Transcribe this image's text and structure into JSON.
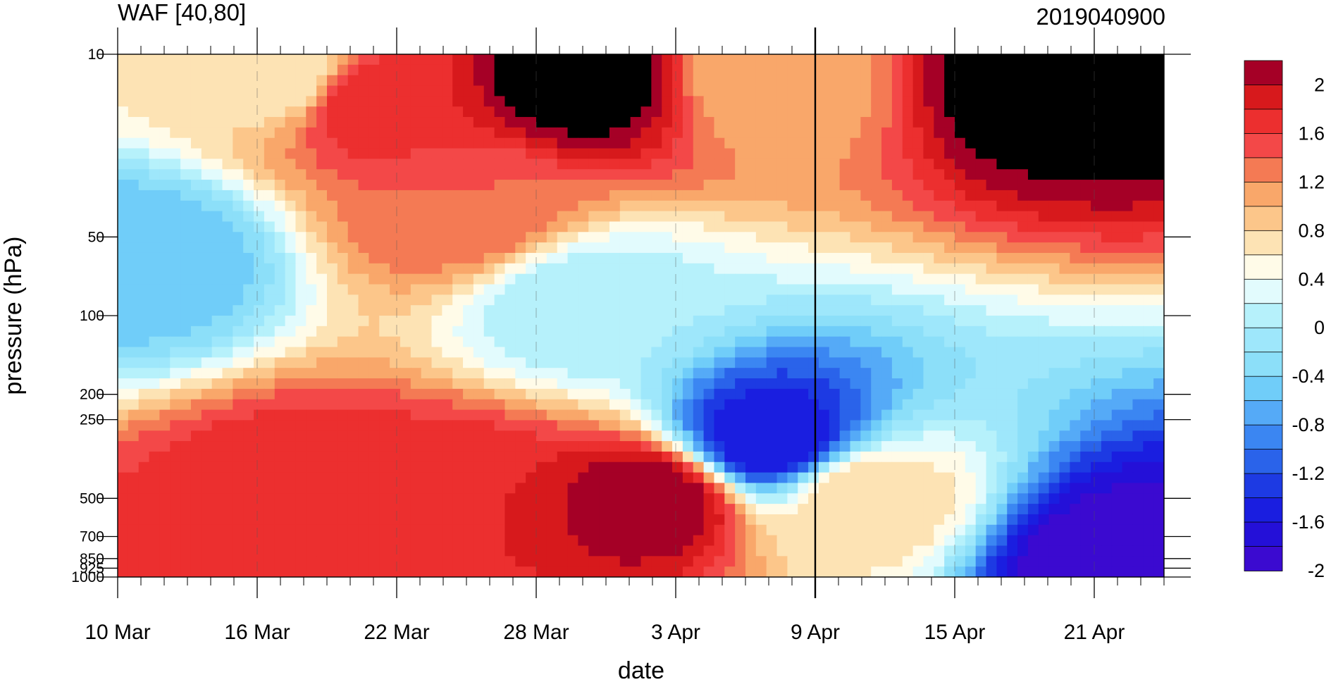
{
  "chart_data": {
    "type": "heatmap",
    "title": "WAF [40,80]",
    "subtitle": "2019040900",
    "xlabel": "date",
    "ylabel": "pressure (hPa)",
    "x_ticks": [
      "10 Mar",
      "16 Mar",
      "22 Mar",
      "28 Mar",
      "3 Apr",
      "9 Apr",
      "15 Apr",
      "21 Apr"
    ],
    "x_range": [
      "10 Mar",
      "24 Apr"
    ],
    "y_scale": "log, reversed",
    "y_ticks": [
      10,
      50,
      100,
      200,
      250,
      500,
      700,
      850,
      925,
      1000
    ],
    "y_range": [
      1000,
      10
    ],
    "analysis_date_marker": "9 Apr",
    "colorbar": {
      "levels": [
        -2.2,
        -2.0,
        -1.8,
        -1.6,
        -1.4,
        -1.2,
        -1.0,
        -0.8,
        -0.6,
        -0.4,
        -0.2,
        0.0,
        0.2,
        0.4,
        0.6,
        0.8,
        1.0,
        1.2,
        1.4,
        1.6,
        1.8,
        2.0,
        2.2
      ],
      "labels": [
        "2",
        "1.6",
        "1.2",
        "0.8",
        "0.4",
        "0",
        "-0.4",
        "-0.8",
        "-1.2",
        "-1.6",
        "-2"
      ],
      "colors": [
        "#a50026",
        "#d7191c",
        "#ec2f2f",
        "#f34848",
        "#f47a54",
        "#f9a76a",
        "#fcc68a",
        "#fde3b4",
        "#fffbe8",
        "#e2fbfd",
        "#b6f1fb",
        "#9ee7fb",
        "#8cdff9",
        "#70cdf9",
        "#55aaf7",
        "#3b86f2",
        "#2a63ea",
        "#1d3ae3",
        "#1a1ee0",
        "#2410d8",
        "#3b0ad0"
      ]
    },
    "grid": "dashed vertical lines at date ticks",
    "centers": [
      {
        "date": "11 Mar",
        "hPa": 60,
        "value": -0.8
      },
      {
        "date": "17 Mar",
        "hPa": 12,
        "value": 0.4
      },
      {
        "date": "18 Mar",
        "hPa": 500,
        "value": 1.6
      },
      {
        "date": "21 Mar",
        "hPa": 15,
        "value": 1.6
      },
      {
        "date": "25 Mar",
        "hPa": 500,
        "value": 1.6
      },
      {
        "date": "25 Mar",
        "hPa": 40,
        "value": 1.2
      },
      {
        "date": "30 Mar",
        "hPa": 12,
        "value": 2.2
      },
      {
        "date": "30 Mar",
        "hPa": 90,
        "value": -0.2
      },
      {
        "date": "2 Apr",
        "hPa": 500,
        "value": 2.0
      },
      {
        "date": "7 Apr",
        "hPa": 300,
        "value": -1.8
      },
      {
        "date": "7 Apr",
        "hPa": 12,
        "value": 0.8
      },
      {
        "date": "11 Apr",
        "hPa": 500,
        "value": 0.6
      },
      {
        "date": "19 Apr",
        "hPa": 12,
        "value": 2.2
      },
      {
        "date": "22 Apr",
        "hPa": 900,
        "value": -2.2
      }
    ]
  }
}
